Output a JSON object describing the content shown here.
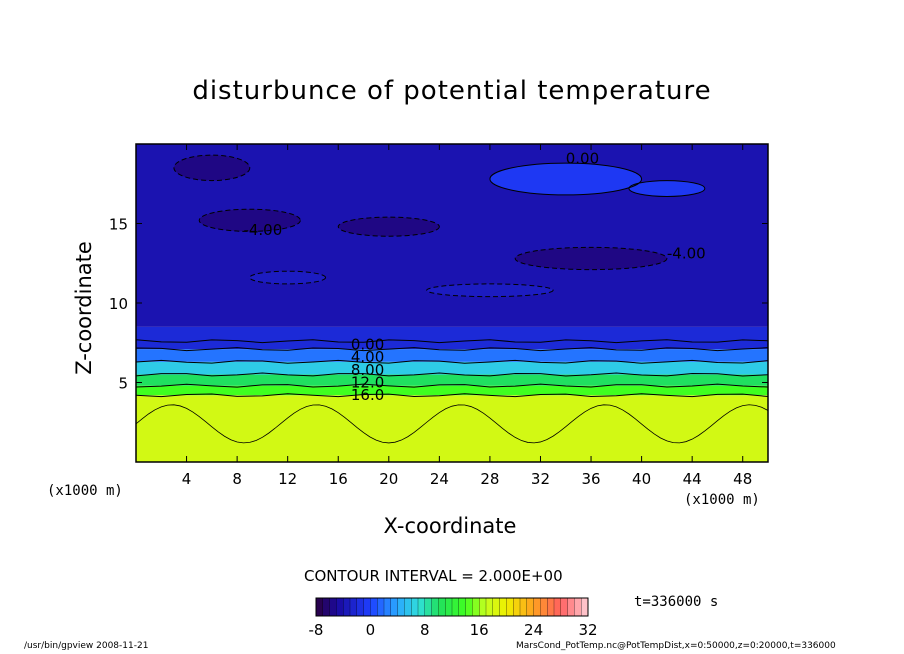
{
  "chart_data": {
    "type": "heatmap",
    "title": "disturbunce of potential temperature",
    "xlabel": "X-coordinate",
    "ylabel": "Z-coordinate",
    "x_unit": "(x1000 m)",
    "xlim": [
      0,
      50
    ],
    "ylim": [
      0,
      20
    ],
    "x_ticks": [
      4,
      8,
      12,
      16,
      20,
      24,
      28,
      32,
      36,
      40,
      44,
      48
    ],
    "y_ticks": [
      5,
      10,
      15
    ],
    "contour_interval_text": "CONTOUR INTERVAL = 2.000E+00",
    "contour_labels": [
      {
        "text": "0.00",
        "x": 34,
        "z": 19.1
      },
      {
        "text": "-4.00",
        "x": 8.5,
        "z": 14.6
      },
      {
        "text": "-4.00",
        "x": 42,
        "z": 13.1
      },
      {
        "text": "0.00",
        "x": 17,
        "z": 7.4
      },
      {
        "text": "4.00",
        "x": 17,
        "z": 6.6
      },
      {
        "text": "8.00",
        "x": 17,
        "z": 5.8
      },
      {
        "text": "12.0",
        "x": 17,
        "z": 5.0
      },
      {
        "text": "16.0",
        "x": 17,
        "z": 4.2
      }
    ],
    "colorbar": {
      "min": -8,
      "max": 32,
      "tick_labels": [
        "-8",
        "0",
        "8",
        "16",
        "24",
        "32"
      ],
      "tick_values": [
        -8,
        0,
        8,
        16,
        24,
        32
      ]
    },
    "field_levels": [
      {
        "z_range": [
          0,
          4.2
        ],
        "value": 18
      },
      {
        "z_range": [
          4.2,
          4.8
        ],
        "value": 14
      },
      {
        "z_range": [
          4.8,
          5.5
        ],
        "value": 10
      },
      {
        "z_range": [
          5.5,
          6.3
        ],
        "value": 6
      },
      {
        "z_range": [
          6.3,
          7.1
        ],
        "value": 2
      },
      {
        "z_range": [
          7.1,
          8.5
        ],
        "value": -2
      },
      {
        "z_range": [
          8.5,
          20
        ],
        "value": -4
      }
    ],
    "time_label": "t=336000 s"
  },
  "footer": {
    "left": "/usr/bin/gpview   2008-11-21",
    "right": "MarsCond_PotTemp.nc@PotTempDist,x=0:50000,z=0:20000,t=336000"
  }
}
